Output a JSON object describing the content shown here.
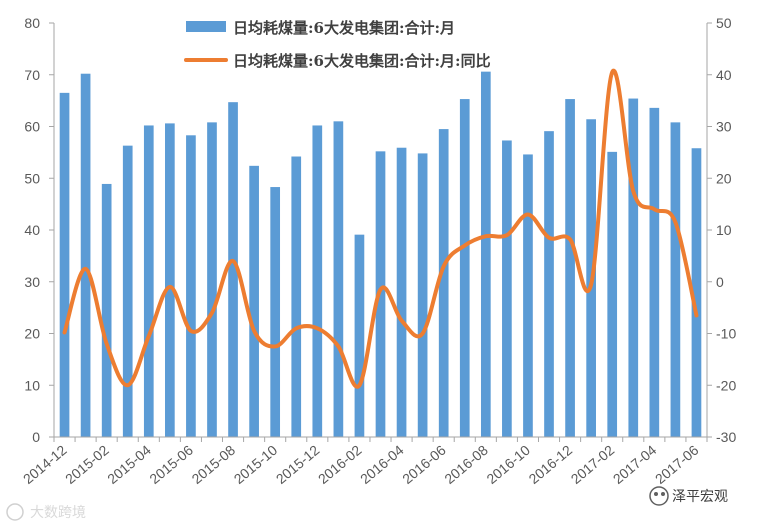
{
  "chart_data": {
    "type": "bar+line",
    "categories": [
      "2014-12",
      "2015-01",
      "2015-02",
      "2015-03",
      "2015-04",
      "2015-05",
      "2015-06",
      "2015-07",
      "2015-08",
      "2015-09",
      "2015-10",
      "2015-11",
      "2015-12",
      "2016-01",
      "2016-02",
      "2016-03",
      "2016-04",
      "2016-05",
      "2016-06",
      "2016-07",
      "2016-08",
      "2016-09",
      "2016-10",
      "2016-11",
      "2016-12",
      "2017-01",
      "2017-02",
      "2017-03",
      "2017-04",
      "2017-05",
      "2017-06"
    ],
    "x_tick_labels": [
      "2014-12",
      "2015-02",
      "2015-04",
      "2015-06",
      "2015-08",
      "2015-10",
      "2015-12",
      "2016-02",
      "2016-04",
      "2016-06",
      "2016-08",
      "2016-10",
      "2016-12",
      "2017-02",
      "2017-04",
      "2017-06"
    ],
    "series": [
      {
        "name": "日均耗煤量:6大发电集团:合计:月",
        "axis": "left",
        "kind": "bar",
        "color": "#5b9bd5",
        "values": [
          66.5,
          70.2,
          48.9,
          56.3,
          60.2,
          60.6,
          58.3,
          60.8,
          64.7,
          52.4,
          48.3,
          54.2,
          60.2,
          61.0,
          39.1,
          55.2,
          55.9,
          54.8,
          59.5,
          65.3,
          70.6,
          57.3,
          54.6,
          59.1,
          65.3,
          61.4,
          55.1,
          65.4,
          63.6,
          60.8,
          55.8
        ]
      },
      {
        "name": "日均耗煤量:6大发电集团:合计:月:同比",
        "axis": "right",
        "kind": "line",
        "color": "#ed7d31",
        "values": [
          -9.8,
          2.5,
          -12.0,
          -20.0,
          -10.5,
          -1.0,
          -9.5,
          -6.0,
          4.0,
          -9.5,
          -12.5,
          -9.0,
          -9.0,
          -12.5,
          -20.0,
          -1.5,
          -7.5,
          -10.0,
          3.0,
          7.0,
          8.8,
          9.0,
          13.0,
          8.5,
          8.2,
          -0.5,
          40.5,
          17.5,
          14.0,
          11.5,
          -6.5
        ]
      }
    ],
    "y_left": {
      "min": 0,
      "max": 80,
      "ticks": [
        0,
        10,
        20,
        30,
        40,
        50,
        60,
        70,
        80
      ]
    },
    "y_right": {
      "min": -30,
      "max": 50,
      "ticks": [
        -30,
        -20,
        -10,
        0,
        10,
        20,
        30,
        40,
        50
      ]
    },
    "grid": false,
    "legend_position": "top-center"
  },
  "watermark": {
    "left_text": "大数跨境",
    "right_text": "泽平宏观"
  }
}
